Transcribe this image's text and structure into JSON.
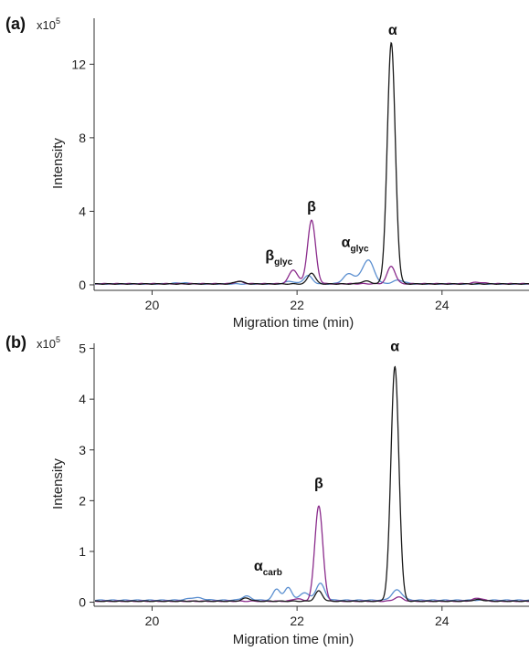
{
  "colors": {
    "black": "#1a1a1a",
    "purple": "#8b2c8c",
    "blue": "#5b8fd0",
    "axis": "#333333"
  },
  "chart_data": [
    {
      "type": "line",
      "panel_label": "(a)",
      "multiplier": "x10",
      "multiplier_exp": "5",
      "xlabel": "Migration time (min)",
      "ylabel": "Intensity",
      "xlim": [
        19.2,
        25.2
      ],
      "ylim": [
        -0.3,
        14.5
      ],
      "xticks": [
        20,
        22,
        24
      ],
      "yticks": [
        0,
        4,
        8,
        12
      ],
      "grid": false,
      "legend": "none",
      "annotations": [
        {
          "text": "α",
          "sub": "",
          "x": 23.32,
          "y": 13.6
        },
        {
          "text": "β",
          "sub": "",
          "x": 22.2,
          "y": 4.0
        },
        {
          "text": "β",
          "sub": "glyc",
          "x": 21.75,
          "y": 1.35
        },
        {
          "text": "α",
          "sub": "glyc",
          "x": 22.8,
          "y": 2.05
        }
      ],
      "series": [
        {
          "color": "black",
          "baseline": 0.05,
          "peaks": [
            [
              23.3,
              13.1,
              0.055
            ],
            [
              22.2,
              0.6,
              0.05
            ],
            [
              21.2,
              0.15,
              0.06
            ],
            [
              22.95,
              0.15,
              0.07
            ]
          ]
        },
        {
          "color": "purple",
          "baseline": 0.06,
          "peaks": [
            [
              22.2,
              3.45,
              0.055
            ],
            [
              21.95,
              0.75,
              0.06
            ],
            [
              23.3,
              0.95,
              0.055
            ],
            [
              21.2,
              0.12,
              0.06
            ],
            [
              24.5,
              0.08,
              0.08
            ]
          ]
        },
        {
          "color": "blue",
          "baseline": 0.05,
          "peaks": [
            [
              22.98,
              1.3,
              0.08
            ],
            [
              22.72,
              0.55,
              0.08
            ],
            [
              22.15,
              0.45,
              0.06
            ],
            [
              21.9,
              0.15,
              0.06
            ],
            [
              23.4,
              0.2,
              0.08
            ],
            [
              20.4,
              0.06,
              0.1
            ]
          ]
        }
      ]
    },
    {
      "type": "line",
      "panel_label": "(b)",
      "multiplier": "x10",
      "multiplier_exp": "5",
      "xlabel": "Migration time (min)",
      "ylabel": "Intensity",
      "xlim": [
        19.2,
        25.2
      ],
      "ylim": [
        -0.08,
        5.1
      ],
      "xticks": [
        20,
        22,
        24
      ],
      "yticks": [
        0,
        1,
        2,
        3,
        4,
        5
      ],
      "grid": false,
      "legend": "none",
      "annotations": [
        {
          "text": "α",
          "sub": "",
          "x": 23.35,
          "y": 4.95
        },
        {
          "text": "β",
          "sub": "",
          "x": 22.3,
          "y": 2.25
        },
        {
          "text": "α",
          "sub": "carb",
          "x": 21.6,
          "y": 0.62
        }
      ],
      "series": [
        {
          "color": "black",
          "baseline": 0.02,
          "peaks": [
            [
              23.35,
              4.62,
              0.055
            ],
            [
              22.3,
              0.2,
              0.05
            ],
            [
              21.3,
              0.06,
              0.06
            ],
            [
              24.5,
              0.03,
              0.08
            ]
          ]
        },
        {
          "color": "purple",
          "baseline": 0.02,
          "peaks": [
            [
              22.3,
              1.88,
              0.055
            ],
            [
              23.4,
              0.08,
              0.06
            ],
            [
              24.5,
              0.06,
              0.07
            ],
            [
              22.0,
              0.05,
              0.06
            ]
          ]
        },
        {
          "color": "blue",
          "baseline": 0.04,
          "peaks": [
            [
              21.72,
              0.22,
              0.05
            ],
            [
              21.88,
              0.25,
              0.05
            ],
            [
              22.32,
              0.33,
              0.06
            ],
            [
              22.1,
              0.15,
              0.06
            ],
            [
              23.38,
              0.2,
              0.07
            ],
            [
              21.3,
              0.08,
              0.06
            ],
            [
              20.6,
              0.05,
              0.1
            ]
          ]
        }
      ]
    }
  ]
}
